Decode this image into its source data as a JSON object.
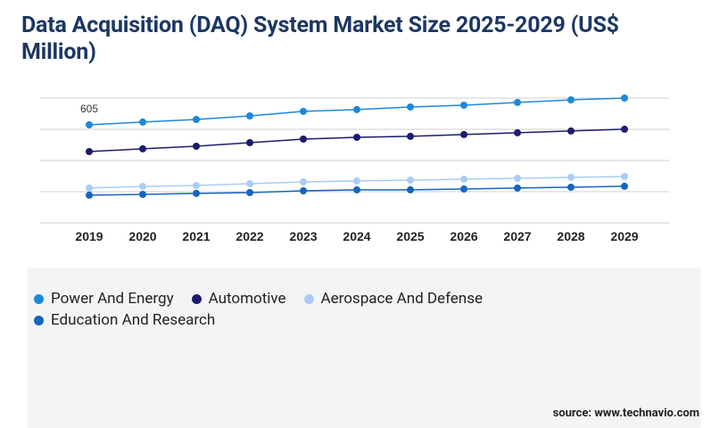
{
  "chart_data": {
    "type": "line",
    "title": "Data Acquisition (DAQ) System Market Size 2025-2029 (US$ Million)",
    "categories": [
      "2019",
      "2020",
      "2021",
      "2022",
      "2023",
      "2024",
      "2025",
      "2026",
      "2027",
      "2028",
      "2029"
    ],
    "series": [
      {
        "name": "Power And Energy",
        "color": "#1e88d8",
        "values": [
          605,
          622,
          638,
          660,
          688,
          699,
          715,
          726,
          743,
          759,
          770
        ]
      },
      {
        "name": "Automotive",
        "color": "#1c1c6e",
        "values": [
          440,
          457,
          473,
          495,
          517,
          528,
          534,
          545,
          556,
          567,
          578
        ]
      },
      {
        "name": "Aerospace And Defense",
        "color": "#a9cdf5",
        "values": [
          215,
          225,
          231,
          242,
          253,
          259,
          264,
          270,
          275,
          281,
          286
        ]
      },
      {
        "name": "Education And Research",
        "color": "#1565c0",
        "values": [
          171,
          176,
          182,
          187,
          198,
          204,
          204,
          209,
          215,
          220,
          226
        ]
      }
    ],
    "ylim": [
      0,
      770
    ],
    "yticks": [
      0,
      192.5,
      385,
      577.5,
      770
    ],
    "grid": true,
    "source": "source: www.technavio.com"
  }
}
